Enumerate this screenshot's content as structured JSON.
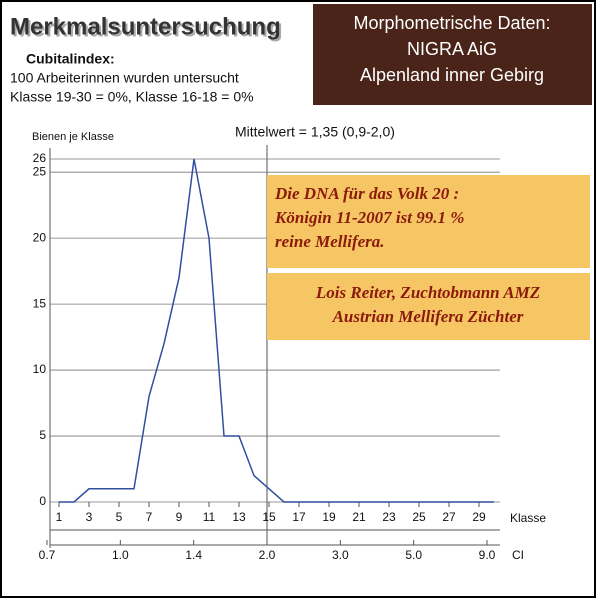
{
  "header": {
    "title": "Merkmalsuntersuchung",
    "box_lines": [
      "Morphometrische Daten:",
      "NIGRA AiG",
      "Alpenland inner Gebirg"
    ],
    "info_lines": [
      "Cubitalindex:",
      "100  Arbeiterinnen wurden untersucht",
      "Klasse 19-30 = 0%,  Klasse 16-18 = 0%"
    ]
  },
  "chart_data": {
    "type": "line",
    "subtitle": "Mittelwert = 1,35 (0,9-2,0)",
    "y_label": "Bienen je Klasse",
    "x_label": "Klasse",
    "x2_label": "CI",
    "x": [
      1,
      2,
      3,
      4,
      5,
      6,
      7,
      8,
      9,
      10,
      11,
      12,
      13,
      14,
      15,
      16,
      17,
      18,
      19,
      20,
      21,
      22,
      23,
      24,
      25,
      26,
      27,
      28,
      29,
      30
    ],
    "series": [
      {
        "color": "#2f4f9f",
        "values": [
          0,
          0,
          1,
          1,
          1,
          1,
          8,
          12,
          17,
          26,
          20,
          5,
          5,
          2,
          1,
          0,
          0,
          0,
          0,
          0,
          0,
          0,
          0,
          0,
          0,
          0,
          0,
          0,
          0,
          0
        ]
      }
    ],
    "xlim": [
      0.4,
      30.4
    ],
    "xticks": [
      1,
      3,
      5,
      7,
      9,
      11,
      13,
      15,
      17,
      19,
      21,
      23,
      25,
      27,
      29
    ],
    "ylim": [
      0,
      26
    ],
    "yticks": [
      0,
      5,
      10,
      15,
      20,
      25,
      26
    ],
    "x2ticks": [
      {
        "value": 0.7,
        "label": "0.7"
      },
      {
        "value": 1.0,
        "label": "1.0"
      },
      {
        "value": 1.4,
        "label": "1.4"
      },
      {
        "value": 2.0,
        "label": "2.0"
      },
      {
        "value": 3.0,
        "label": "3.0"
      },
      {
        "value": 5.0,
        "label": "5.0"
      },
      {
        "value": 9.0,
        "label": "9.0"
      }
    ],
    "grid": true,
    "annotations": [
      {
        "lines": [
          "Die DNA für das Volk 20 :",
          "Königin 11-2007 ist 99.1 %",
          "reine Mellifera."
        ]
      },
      {
        "lines": [
          "Lois Reiter, Zuchtobmann AMZ",
          "Austrian Mellifera Züchter"
        ]
      }
    ]
  }
}
